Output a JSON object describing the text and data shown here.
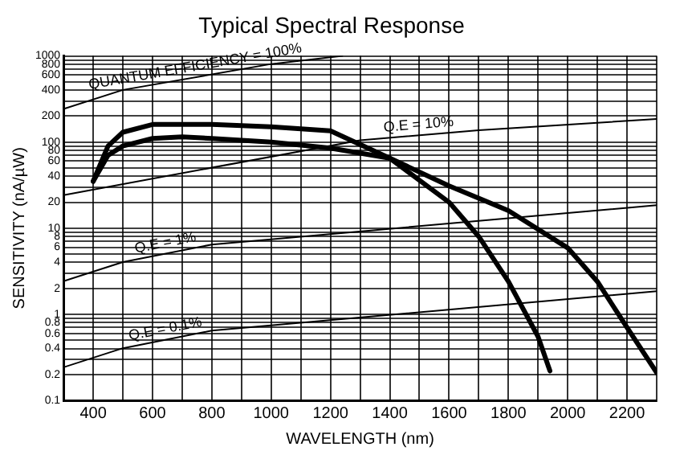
{
  "chart_data": {
    "type": "line",
    "title": "Typical Spectral Response",
    "xlabel": "WAVELENGTH (nm)",
    "ylabel": "SENSITIVITY (nA/µW)",
    "log": "y",
    "grid": true,
    "legend": false,
    "marker": "none",
    "xlim": [
      300,
      2300
    ],
    "ylim": [
      0.1,
      1000
    ],
    "xticks": [
      {
        "value": 300,
        "label": null
      },
      400,
      {
        "value": 500,
        "label": null
      },
      600,
      {
        "value": 700,
        "label": null
      },
      800,
      {
        "value": 900,
        "label": null
      },
      1000,
      {
        "value": 1100,
        "label": null
      },
      1200,
      {
        "value": 1300,
        "label": null
      },
      1400,
      {
        "value": 1500,
        "label": null
      },
      1600,
      {
        "value": 1700,
        "label": null
      },
      1800,
      {
        "value": 1900,
        "label": null
      },
      2000,
      {
        "value": 2100,
        "label": null
      },
      2200,
      {
        "value": 2300,
        "label": null
      }
    ],
    "yticks": [
      0.1,
      0.2,
      {
        "value": 0.3,
        "label": null
      },
      0.4,
      {
        "value": 0.5,
        "label": null
      },
      0.6,
      {
        "value": 0.7,
        "label": null
      },
      0.8,
      {
        "value": 0.9,
        "label": null
      },
      1,
      2,
      {
        "value": 3,
        "label": null
      },
      4,
      {
        "value": 5,
        "label": null
      },
      6,
      {
        "value": 7,
        "label": null
      },
      8,
      {
        "value": 9,
        "label": null
      },
      10,
      20,
      {
        "value": 30,
        "label": null
      },
      40,
      {
        "value": 50,
        "label": null
      },
      60,
      {
        "value": 70,
        "label": null
      },
      80,
      {
        "value": 90,
        "label": null
      },
      100,
      200,
      {
        "value": 300,
        "label": null
      },
      400,
      {
        "value": 500,
        "label": null
      },
      600,
      {
        "value": 700,
        "label": null
      },
      800,
      {
        "value": 900,
        "label": null
      },
      1000
    ],
    "series": [
      {
        "color": "#000000",
        "x": [
          400,
          450,
          500,
          600,
          700,
          800,
          1000,
          1200,
          1400,
          1600,
          1700,
          1800,
          1900,
          1940
        ],
        "values": [
          35,
          90,
          130,
          160,
          160,
          160,
          150,
          135,
          65,
          20,
          8,
          2.4,
          0.55,
          0.22
        ]
      },
      {
        "color": "#000000",
        "x": [
          400,
          450,
          500,
          600,
          700,
          800,
          1000,
          1200,
          1400,
          1600,
          1800,
          2000,
          2100,
          2200,
          2300
        ],
        "values": [
          35,
          70,
          90,
          110,
          115,
          110,
          100,
          85,
          65,
          31,
          16,
          5.9,
          2.4,
          0.7,
          0.21
        ]
      },
      {
        "name": "QUANTUM EFFICIENCY = 100%",
        "color": "#000000",
        "x": [
          300,
          500,
          1000,
          1240
        ],
        "values": [
          242,
          403,
          806,
          1000
        ]
      },
      {
        "name": "Q.E = 10%",
        "color": "#000000",
        "x": [
          300,
          1300,
          1700,
          2300
        ],
        "values": [
          24.2,
          105,
          137,
          185
        ]
      },
      {
        "name": "Q.E = 1%",
        "color": "#000000",
        "x": [
          300,
          500,
          800,
          2300
        ],
        "values": [
          2.42,
          4.03,
          6.45,
          18.5
        ]
      },
      {
        "name": "Q.E = 0.1%",
        "color": "#000000",
        "x": [
          300,
          500,
          800,
          2300
        ],
        "values": [
          0.242,
          0.403,
          0.645,
          1.85
        ]
      }
    ]
  }
}
